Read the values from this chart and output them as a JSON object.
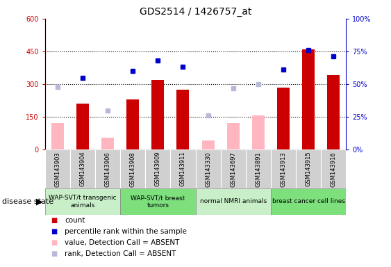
{
  "title": "GDS2514 / 1426757_at",
  "samples": [
    "GSM143903",
    "GSM143904",
    "GSM143906",
    "GSM143908",
    "GSM143909",
    "GSM143911",
    "GSM143330",
    "GSM143697",
    "GSM143891",
    "GSM143913",
    "GSM143915",
    "GSM143916"
  ],
  "count_present": [
    null,
    210,
    null,
    230,
    320,
    275,
    null,
    null,
    null,
    285,
    460,
    340
  ],
  "count_absent": [
    120,
    null,
    55,
    null,
    null,
    null,
    40,
    120,
    155,
    null,
    null,
    null
  ],
  "rank_present_pct": [
    null,
    55,
    null,
    60,
    68,
    63,
    null,
    null,
    null,
    61,
    76,
    71
  ],
  "rank_absent_pct": [
    48,
    null,
    30,
    null,
    null,
    null,
    26,
    47,
    50,
    null,
    null,
    null
  ],
  "groups": [
    {
      "label": "WAP-SVT/t transgenic\nanimals",
      "start": 0,
      "end": 3,
      "color": "#c8efc8"
    },
    {
      "label": "WAP-SVT/t breast\ntumors",
      "start": 3,
      "end": 6,
      "color": "#7de07d"
    },
    {
      "label": "normal NMRI animals",
      "start": 6,
      "end": 9,
      "color": "#c8efc8"
    },
    {
      "label": "breast cancer cell lines",
      "start": 9,
      "end": 12,
      "color": "#7de07d"
    }
  ],
  "ylim_left": [
    0,
    600
  ],
  "ylim_right": [
    0,
    100
  ],
  "yticks_left": [
    0,
    150,
    300,
    450,
    600
  ],
  "yticks_right": [
    0,
    25,
    50,
    75,
    100
  ],
  "ytick_labels_right": [
    "0%",
    "25%",
    "50%",
    "75%",
    "100%"
  ],
  "count_color": "#cc0000",
  "absent_bar_color": "#ffb6c1",
  "rank_color": "#0000cc",
  "absent_rank_color": "#b8b8d8",
  "grid_lines": [
    150,
    300,
    450
  ],
  "disease_state_label": "disease state"
}
